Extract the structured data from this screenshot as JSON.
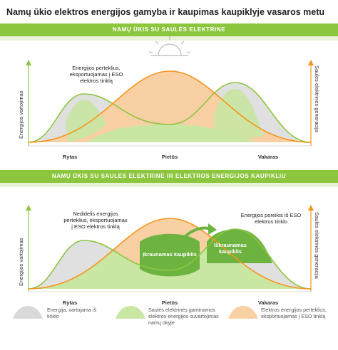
{
  "title": "Namų ūkio elektros energijos gamyba ir kaupimas kaupiklyje vasaros metu",
  "section1": {
    "banner": "NAMŲ ŪKIS SU SAULĖS ELEKTRINE",
    "left_axis": "Energijos vartojimas",
    "right_axis": "Saulės elektrinės generacija",
    "annotation": "Energijos perteklius, eksportuojamas į ESO elektros tinklą",
    "x_labels": [
      "Rytas",
      "Pietūs",
      "Vakaras"
    ]
  },
  "section2": {
    "banner": "NAMŲ ŪKIS SU SAULĖS ELEKTRINE IR ELEKTROS ENERGIJOS KAUPIKLIU",
    "left_axis": "Energijos vartojimas",
    "right_axis": "Saulės elektrinės generacija",
    "annotation_left": "Nedidelis energijos perteklius, eksportuojamas į ESO elektros tinklą",
    "annotation_right": "Energijos poreikis iš ESO elektros tinklo",
    "charging": "Įkraunamas kaupiklis",
    "discharging": "Iškraunamas kaupiklis",
    "x_labels": [
      "Rytas",
      "Pietūs",
      "Vakaras"
    ]
  },
  "legend": [
    {
      "text": "Energija, vartojama iš tinklo",
      "color": "#d9d9d9"
    },
    {
      "text": "Saulės elektrinės gaminamos elektros energijos suvartojimas namų ūkyje",
      "color": "#c9e6a3"
    },
    {
      "text": "Elektros energijos perteklius, eksportuojamas į ESO tinklą",
      "color": "#f9cfa4"
    }
  ],
  "colors": {
    "green": "#8cc63f",
    "dark_green": "#6db33f",
    "orange": "#f7941d",
    "grey": "#d9d9d9",
    "light_green": "#c9e6a3",
    "peach": "#f9cfa4"
  },
  "icons": [
    "sun-icon",
    "arrow-up-icon",
    "arrow-right-icon"
  ]
}
